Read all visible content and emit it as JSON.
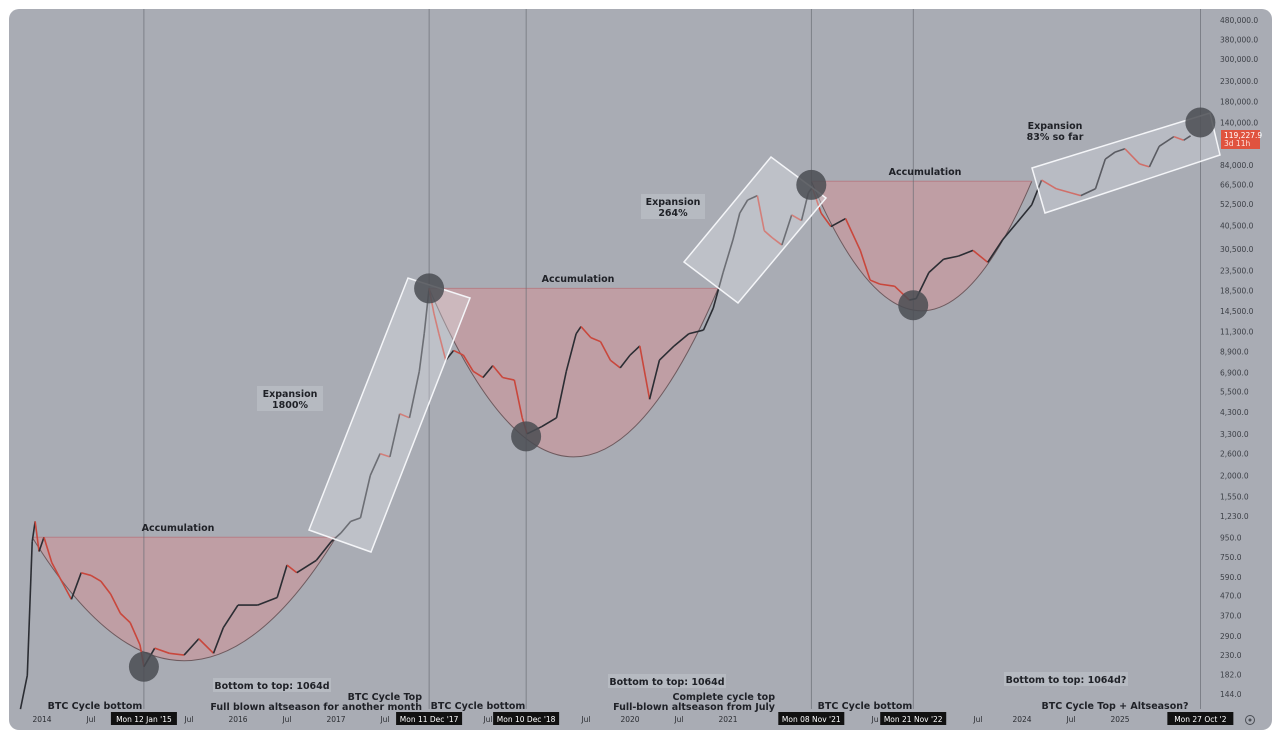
{
  "chart_data": {
    "type": "line",
    "title": "",
    "xlabel": "",
    "ylabel": "",
    "yscale": "log",
    "ylim": [
      130,
      520000
    ],
    "xlim": [
      2013.72,
      2026.1
    ],
    "grid": false,
    "colors": {
      "background": "#a9acb4",
      "up": "#2b2d33",
      "down": "#c9473c",
      "accumulation_fill": "#c79a9f",
      "price_tag": "#e0533f",
      "cycle_circle": "#4a4c52"
    },
    "y_ticks": [
      480000,
      380000,
      300000,
      230000,
      180000,
      140000,
      84000,
      66500,
      52500,
      40500,
      30500,
      23500,
      18500,
      14500,
      11300,
      8900,
      6900,
      5500,
      4300,
      3300,
      2600,
      2000,
      1550,
      1230,
      950,
      750,
      590,
      470,
      370,
      290,
      230,
      182,
      144
    ],
    "y_tick_labels": [
      "480,000.0",
      "380,000.0",
      "300,000.0",
      "230,000.0",
      "180,000.0",
      "140,000.0",
      "84,000.0",
      "66,500.0",
      "52,500.0",
      "40,500.0",
      "30,500.0",
      "23,500.0",
      "18,500.0",
      "14,500.0",
      "11,300.0",
      "8,900.0",
      "6,900.0",
      "5,500.0",
      "4,300.0",
      "3,300.0",
      "2,600.0",
      "2,000.0",
      "1,550.0",
      "1,230.0",
      "950.0",
      "750.0",
      "590.0",
      "470.0",
      "370.0",
      "290.0",
      "230.0",
      "182.0",
      "144.0"
    ],
    "x_ticks": [
      {
        "t": 2014.0,
        "label": "2014"
      },
      {
        "t": 2014.5,
        "label": "Jul"
      },
      {
        "t": 2015.5,
        "label": "Jul"
      },
      {
        "t": 2016.0,
        "label": "2016"
      },
      {
        "t": 2016.5,
        "label": "Jul"
      },
      {
        "t": 2017.0,
        "label": "2017"
      },
      {
        "t": 2017.5,
        "label": "Jul"
      },
      {
        "t": 2018.55,
        "label": "Jul"
      },
      {
        "t": 2019.55,
        "label": "Jul"
      },
      {
        "t": 2020.0,
        "label": "2020"
      },
      {
        "t": 2020.5,
        "label": "Jul"
      },
      {
        "t": 2021.0,
        "label": "2021"
      },
      {
        "t": 2022.5,
        "label": "Ju"
      },
      {
        "t": 2023.55,
        "label": "Jul"
      },
      {
        "t": 2024.0,
        "label": "2024"
      },
      {
        "t": 2024.5,
        "label": "Jul"
      },
      {
        "t": 2025.0,
        "label": "2025"
      }
    ],
    "cycle_markers": [
      {
        "t": 2015.04,
        "price": 200,
        "date_label": "Mon 12 Jan '15"
      },
      {
        "t": 2017.95,
        "price": 19000,
        "date_label": "Mon 11 Dec '17"
      },
      {
        "t": 2018.94,
        "price": 3200,
        "date_label": "Mon 10 Dec '18"
      },
      {
        "t": 2021.85,
        "price": 66000,
        "date_label": "Mon 08 Nov '21"
      },
      {
        "t": 2022.89,
        "price": 15500,
        "date_label": "Mon 21 Nov '22"
      },
      {
        "t": 2025.82,
        "price": 140000,
        "date_label": "Mon 27 Oct '2"
      }
    ],
    "last_price": {
      "value": "119,227.9",
      "sub": "3d 11h"
    },
    "series": [
      {
        "name": "BTC",
        "points": [
          [
            2013.78,
            120
          ],
          [
            2013.85,
            180
          ],
          [
            2013.9,
            900
          ],
          [
            2013.93,
            1150
          ],
          [
            2013.97,
            800
          ],
          [
            2014.02,
            950
          ],
          [
            2014.1,
            700
          ],
          [
            2014.2,
            560
          ],
          [
            2014.3,
            450
          ],
          [
            2014.4,
            620
          ],
          [
            2014.5,
            600
          ],
          [
            2014.6,
            560
          ],
          [
            2014.7,
            480
          ],
          [
            2014.8,
            380
          ],
          [
            2014.9,
            340
          ],
          [
            2015.0,
            260
          ],
          [
            2015.04,
            200
          ],
          [
            2015.15,
            250
          ],
          [
            2015.3,
            235
          ],
          [
            2015.45,
            230
          ],
          [
            2015.6,
            280
          ],
          [
            2015.75,
            235
          ],
          [
            2015.85,
            320
          ],
          [
            2016.0,
            420
          ],
          [
            2016.2,
            420
          ],
          [
            2016.4,
            460
          ],
          [
            2016.5,
            680
          ],
          [
            2016.6,
            620
          ],
          [
            2016.8,
            720
          ],
          [
            2016.95,
            900
          ],
          [
            2017.05,
            1000
          ],
          [
            2017.15,
            1150
          ],
          [
            2017.25,
            1200
          ],
          [
            2017.35,
            2000
          ],
          [
            2017.45,
            2600
          ],
          [
            2017.55,
            2500
          ],
          [
            2017.65,
            4200
          ],
          [
            2017.75,
            4000
          ],
          [
            2017.85,
            7000
          ],
          [
            2017.9,
            11000
          ],
          [
            2017.95,
            19000
          ],
          [
            2018.0,
            14000
          ],
          [
            2018.05,
            11000
          ],
          [
            2018.12,
            8000
          ],
          [
            2018.2,
            9000
          ],
          [
            2018.3,
            8500
          ],
          [
            2018.4,
            7000
          ],
          [
            2018.5,
            6500
          ],
          [
            2018.6,
            7500
          ],
          [
            2018.7,
            6500
          ],
          [
            2018.82,
            6300
          ],
          [
            2018.9,
            4000
          ],
          [
            2018.95,
            3300
          ],
          [
            2019.1,
            3600
          ],
          [
            2019.25,
            4000
          ],
          [
            2019.35,
            7000
          ],
          [
            2019.45,
            11000
          ],
          [
            2019.5,
            12000
          ],
          [
            2019.6,
            10500
          ],
          [
            2019.7,
            10000
          ],
          [
            2019.8,
            8000
          ],
          [
            2019.9,
            7300
          ],
          [
            2020.0,
            8500
          ],
          [
            2020.1,
            9500
          ],
          [
            2020.2,
            5000
          ],
          [
            2020.3,
            8000
          ],
          [
            2020.45,
            9500
          ],
          [
            2020.6,
            11000
          ],
          [
            2020.75,
            11500
          ],
          [
            2020.85,
            15000
          ],
          [
            2020.95,
            23000
          ],
          [
            2021.05,
            34000
          ],
          [
            2021.12,
            47000
          ],
          [
            2021.2,
            55000
          ],
          [
            2021.3,
            58000
          ],
          [
            2021.37,
            38000
          ],
          [
            2021.45,
            35000
          ],
          [
            2021.55,
            32000
          ],
          [
            2021.65,
            46000
          ],
          [
            2021.75,
            43000
          ],
          [
            2021.82,
            60000
          ],
          [
            2021.86,
            64000
          ],
          [
            2021.95,
            47000
          ],
          [
            2022.05,
            40000
          ],
          [
            2022.2,
            44000
          ],
          [
            2022.35,
            30000
          ],
          [
            2022.45,
            21000
          ],
          [
            2022.55,
            20000
          ],
          [
            2022.7,
            19500
          ],
          [
            2022.85,
            16500
          ],
          [
            2022.92,
            16800
          ],
          [
            2023.05,
            23000
          ],
          [
            2023.2,
            27000
          ],
          [
            2023.35,
            28000
          ],
          [
            2023.5,
            30000
          ],
          [
            2023.65,
            26000
          ],
          [
            2023.8,
            34000
          ],
          [
            2023.95,
            42000
          ],
          [
            2024.1,
            52000
          ],
          [
            2024.2,
            70000
          ],
          [
            2024.35,
            63000
          ],
          [
            2024.5,
            60000
          ],
          [
            2024.6,
            58000
          ],
          [
            2024.75,
            63000
          ],
          [
            2024.85,
            90000
          ],
          [
            2024.95,
            98000
          ],
          [
            2025.05,
            102000
          ],
          [
            2025.2,
            85000
          ],
          [
            2025.3,
            82000
          ],
          [
            2025.4,
            105000
          ],
          [
            2025.55,
            118000
          ],
          [
            2025.65,
            113000
          ],
          [
            2025.72,
            119228
          ]
        ]
      }
    ],
    "accumulation_zones": [
      {
        "label": "Accumulation",
        "t_start": 2013.9,
        "t_end": 2017.0,
        "top": 950,
        "bottom": 215
      },
      {
        "label": "Accumulation",
        "t_start": 2017.95,
        "t_end": 2020.9,
        "top": 19000,
        "bottom": 2500
      },
      {
        "label": "Accumulation",
        "t_start": 2021.85,
        "t_end": 2024.1,
        "top": 69000,
        "bottom": 14500
      }
    ],
    "annotations": {
      "accumulation_1": "Accumulation",
      "accumulation_2": "Accumulation",
      "accumulation_3": "Accumulation",
      "expansion_1": [
        "Expansion",
        "1800%"
      ],
      "expansion_2": [
        "Expansion",
        "264%"
      ],
      "expansion_3": [
        "Expansion",
        "83% so far"
      ],
      "bottom_to_top_1": "Bottom to top: 1064d",
      "bottom_to_top_2": "Bottom to top: 1064d",
      "bottom_to_top_3": "Bottom to top: 1064d?",
      "cycle_bottom_1": "BTC Cycle bottom",
      "cycle_top_1": [
        "BTC Cycle Top",
        "Full blown altseason for another month"
      ],
      "cycle_bottom_2": "BTC Cycle bottom",
      "cycle_top_2": [
        "Complete cycle top",
        "Full-blown altseason from July"
      ],
      "cycle_bottom_3": "BTC Cycle bottom",
      "cycle_top_3": "BTC Cycle Top + Altseason?"
    }
  }
}
